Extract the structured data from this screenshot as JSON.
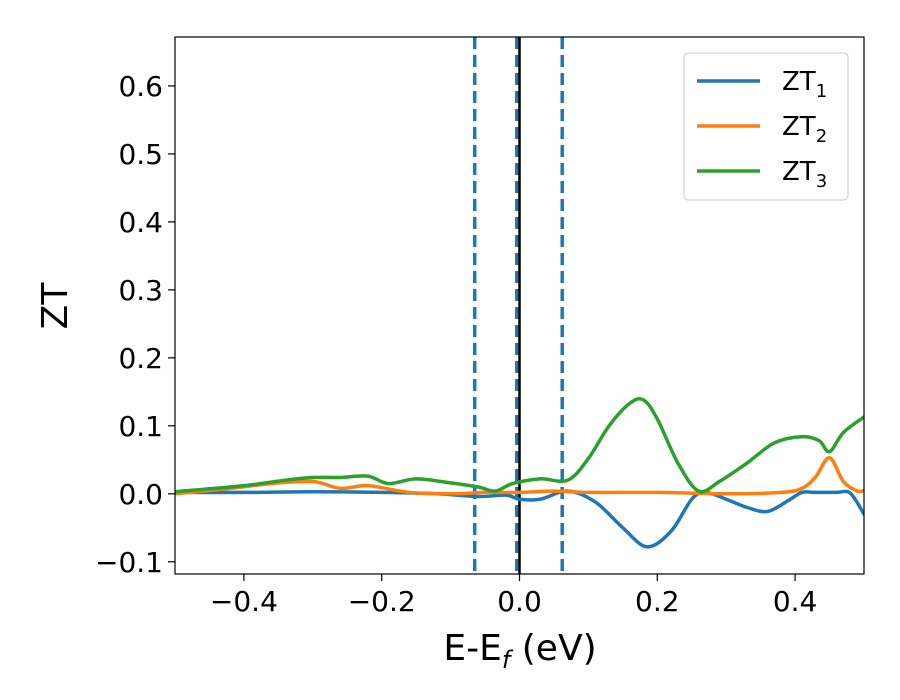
{
  "chart_data": {
    "type": "line",
    "xlabel": "E-E",
    "xlabel_sub": "f",
    "xlabel_unit": " (eV)",
    "ylabel": "ZT",
    "xlim": [
      -0.5,
      0.5
    ],
    "ylim": [
      -0.118,
      0.672
    ],
    "xticks": [
      -0.4,
      -0.2,
      0.0,
      0.2,
      0.4
    ],
    "xtick_labels": [
      "−0.4",
      "−0.2",
      "0.0",
      "0.2",
      "0.4"
    ],
    "yticks": [
      -0.1,
      0.0,
      0.1,
      0.2,
      0.3,
      0.4,
      0.5,
      0.6
    ],
    "ytick_labels": [
      "−0.1",
      "0.0",
      "0.1",
      "0.2",
      "0.3",
      "0.4",
      "0.5",
      "0.6"
    ],
    "grid": false,
    "legend_position": "top-right",
    "vlines": [
      {
        "x": -0.065,
        "style": "dashed",
        "color": "#1f77b4"
      },
      {
        "x": -0.004,
        "style": "dashed",
        "color": "#1f77b4"
      },
      {
        "x": 0.062,
        "style": "dashed",
        "color": "#1f77b4"
      },
      {
        "x": 0.0,
        "style": "solid",
        "color": "#000000"
      }
    ],
    "series": [
      {
        "name": "ZT",
        "sub": "1",
        "color": "#1f77b4",
        "x": [
          -0.5,
          -0.4,
          -0.3,
          -0.2,
          -0.12,
          -0.06,
          -0.02,
          0.0,
          0.03,
          0.07,
          0.11,
          0.15,
          0.185,
          0.22,
          0.25,
          0.27,
          0.3,
          0.33,
          0.36,
          0.39,
          0.41,
          0.43,
          0.46,
          0.48,
          0.5
        ],
        "y": [
          0.002,
          0.002,
          0.003,
          0.002,
          0.0,
          -0.004,
          -0.002,
          -0.008,
          -0.008,
          0.004,
          -0.012,
          -0.05,
          -0.078,
          -0.055,
          -0.008,
          0.002,
          -0.008,
          -0.02,
          -0.026,
          -0.01,
          0.002,
          0.002,
          0.002,
          0.001,
          -0.03
        ]
      },
      {
        "name": "ZT",
        "sub": "2",
        "color": "#ff7f0e",
        "x": [
          -0.5,
          -0.42,
          -0.36,
          -0.3,
          -0.26,
          -0.22,
          -0.16,
          -0.1,
          -0.05,
          0.0,
          0.05,
          0.1,
          0.2,
          0.3,
          0.38,
          0.41,
          0.43,
          0.45,
          0.47,
          0.49,
          0.5
        ],
        "y": [
          0.0,
          0.008,
          0.015,
          0.018,
          0.008,
          0.012,
          0.002,
          0.0,
          0.002,
          0.002,
          0.004,
          0.002,
          0.002,
          0.0,
          0.002,
          0.008,
          0.025,
          0.053,
          0.018,
          0.004,
          0.005
        ]
      },
      {
        "name": "ZT",
        "sub": "3",
        "color": "#2ca02c",
        "x": [
          -0.5,
          -0.4,
          -0.34,
          -0.3,
          -0.26,
          -0.22,
          -0.19,
          -0.15,
          -0.1,
          -0.06,
          -0.035,
          -0.01,
          0.03,
          0.07,
          0.1,
          0.13,
          0.16,
          0.18,
          0.2,
          0.23,
          0.26,
          0.29,
          0.33,
          0.37,
          0.41,
          0.435,
          0.45,
          0.47,
          0.5
        ],
        "y": [
          0.003,
          0.012,
          0.02,
          0.024,
          0.024,
          0.026,
          0.015,
          0.022,
          0.016,
          0.01,
          0.004,
          0.015,
          0.022,
          0.02,
          0.052,
          0.1,
          0.133,
          0.138,
          0.11,
          0.045,
          0.004,
          0.018,
          0.045,
          0.075,
          0.084,
          0.078,
          0.062,
          0.09,
          0.113
        ]
      }
    ]
  }
}
